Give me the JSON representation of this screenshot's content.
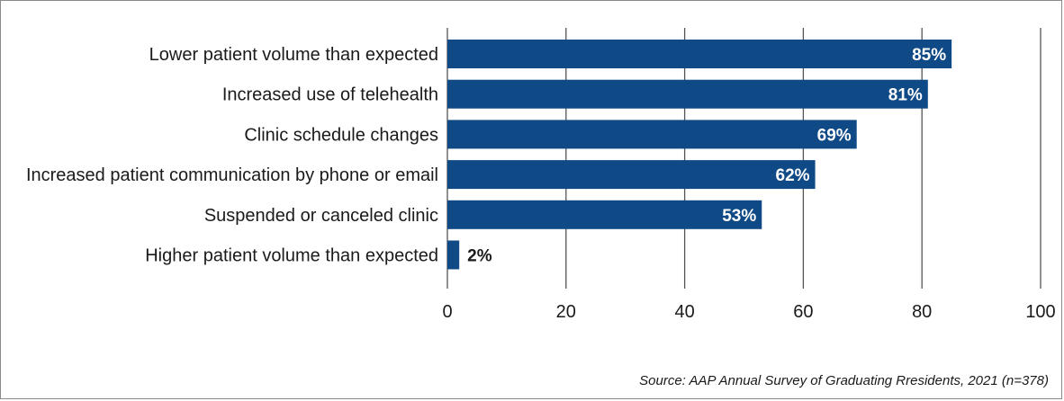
{
  "chart_data": {
    "type": "bar",
    "orientation": "horizontal",
    "categories": [
      "Lower patient volume than expected",
      "Increased use of telehealth",
      "Clinic schedule changes",
      "Increased patient communication by phone or email",
      "Suspended or canceled clinic",
      "Higher patient volume than expected"
    ],
    "values": [
      85,
      81,
      69,
      62,
      53,
      2
    ],
    "value_labels": [
      "85%",
      "81%",
      "69%",
      "62%",
      "53%",
      "2%"
    ],
    "xticks": [
      "0",
      "20",
      "40",
      "60",
      "80",
      "100"
    ],
    "xlim": [
      0,
      100
    ],
    "grid": "vertical",
    "bar_color": "#0f4a86",
    "source": "Source: AAP Annual Survey of Graduating Rresidents, 2021 (n=378)"
  }
}
